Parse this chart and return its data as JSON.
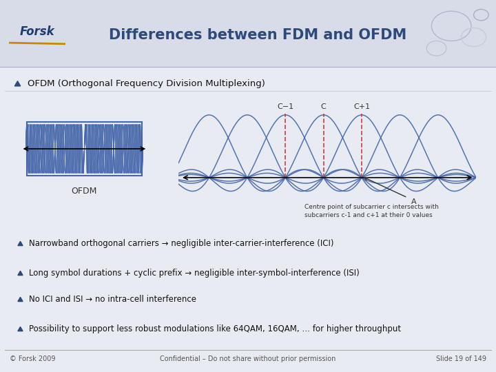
{
  "title": "Differences between FDM and OFDM",
  "title_color": "#2E4A7A",
  "bg_color": "#E8EBF2",
  "header_bg": "#D8DCE8",
  "bullet_main": "OFDM (Orthogonal Frequency Division Multiplexing)",
  "bullets": [
    "Narrowband orthogonal carriers → negligible inter-carrier-interference (ICI)",
    "Long symbol durations + cyclic prefix → negligible inter-symbol-interference (ISI)",
    "No ICI and ISI → no intra-cell interference",
    "Possibility to support less robust modulations like 64QAM, 16QAM, … for higher throughput"
  ],
  "footer_left": "© Forsk 2009",
  "footer_center": "Confidential – Do not share without prior permission",
  "footer_right": "Slide 19 of 149",
  "ofdm_label": "OFDM",
  "annotation": "Centre point of subcarrier c intersects with\nsubcarriers c-1 and c+1 at their 0 values",
  "annotation_point": "A",
  "carrier_labels": [
    "C−1",
    "C",
    "C+1"
  ],
  "fdm_color": "#4466AA",
  "ofdm_sinc_color": "#4466AA",
  "dashed_color": "#CC3333",
  "arrow_color": "#333333",
  "forsk_color": "#1E3A6E",
  "forsk_orange": "#CC8800"
}
